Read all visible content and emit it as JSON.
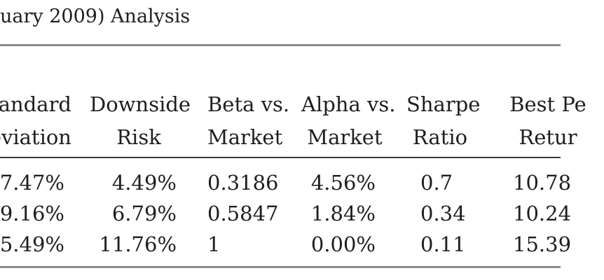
{
  "title": "uary 2009) Analysis",
  "table": {
    "headers": [
      {
        "line1": "andard",
        "line2": "eviation"
      },
      {
        "line1": "Downside",
        "line2": "Risk"
      },
      {
        "line1": "Beta vs.",
        "line2": "Market"
      },
      {
        "line1": "Alpha vs.",
        "line2": "Market"
      },
      {
        "line1": "Sharpe",
        "line2": "Ratio"
      },
      {
        "line1": "Best Pe",
        "line2": "Retur"
      }
    ],
    "rows": [
      [
        "7.47%",
        "4.49%",
        "0.3186",
        "4.56%",
        "0.7",
        "10.78"
      ],
      [
        "9.16%",
        "6.79%",
        "0.5847",
        "1.84%",
        "0.34",
        "10.24"
      ],
      [
        "5.49%",
        "11.76%",
        "1",
        "0.00%",
        "0.11",
        "15.39"
      ]
    ]
  }
}
